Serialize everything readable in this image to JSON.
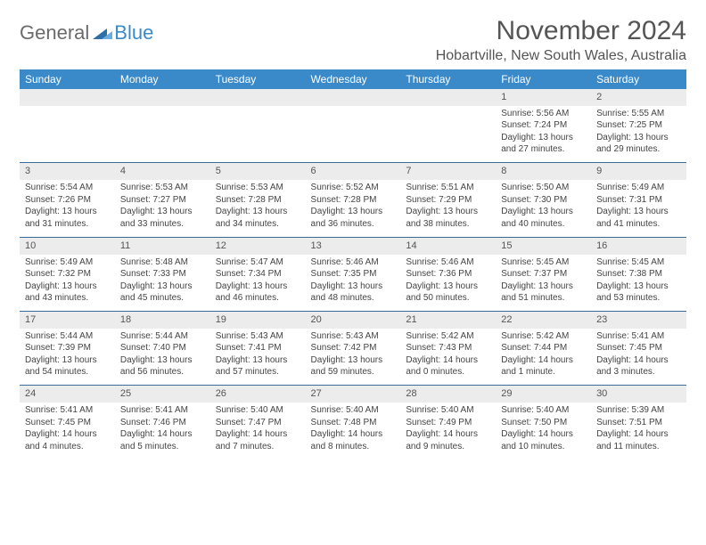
{
  "brand": {
    "general": "General",
    "blue": "Blue"
  },
  "title": "November 2024",
  "location": "Hobartville, New South Wales, Australia",
  "colors": {
    "header_bg": "#3a8ac9",
    "header_text": "#ffffff",
    "daynum_bg": "#ececec",
    "row_border": "#3a6a9a",
    "text": "#444444",
    "title_text": "#555555"
  },
  "col_headers": [
    "Sunday",
    "Monday",
    "Tuesday",
    "Wednesday",
    "Thursday",
    "Friday",
    "Saturday"
  ],
  "weeks": [
    {
      "nums": [
        "",
        "",
        "",
        "",
        "",
        "1",
        "2"
      ],
      "cells": [
        [],
        [],
        [],
        [],
        [],
        [
          "Sunrise: 5:56 AM",
          "Sunset: 7:24 PM",
          "Daylight: 13 hours",
          "and 27 minutes."
        ],
        [
          "Sunrise: 5:55 AM",
          "Sunset: 7:25 PM",
          "Daylight: 13 hours",
          "and 29 minutes."
        ]
      ]
    },
    {
      "nums": [
        "3",
        "4",
        "5",
        "6",
        "7",
        "8",
        "9"
      ],
      "cells": [
        [
          "Sunrise: 5:54 AM",
          "Sunset: 7:26 PM",
          "Daylight: 13 hours",
          "and 31 minutes."
        ],
        [
          "Sunrise: 5:53 AM",
          "Sunset: 7:27 PM",
          "Daylight: 13 hours",
          "and 33 minutes."
        ],
        [
          "Sunrise: 5:53 AM",
          "Sunset: 7:28 PM",
          "Daylight: 13 hours",
          "and 34 minutes."
        ],
        [
          "Sunrise: 5:52 AM",
          "Sunset: 7:28 PM",
          "Daylight: 13 hours",
          "and 36 minutes."
        ],
        [
          "Sunrise: 5:51 AM",
          "Sunset: 7:29 PM",
          "Daylight: 13 hours",
          "and 38 minutes."
        ],
        [
          "Sunrise: 5:50 AM",
          "Sunset: 7:30 PM",
          "Daylight: 13 hours",
          "and 40 minutes."
        ],
        [
          "Sunrise: 5:49 AM",
          "Sunset: 7:31 PM",
          "Daylight: 13 hours",
          "and 41 minutes."
        ]
      ]
    },
    {
      "nums": [
        "10",
        "11",
        "12",
        "13",
        "14",
        "15",
        "16"
      ],
      "cells": [
        [
          "Sunrise: 5:49 AM",
          "Sunset: 7:32 PM",
          "Daylight: 13 hours",
          "and 43 minutes."
        ],
        [
          "Sunrise: 5:48 AM",
          "Sunset: 7:33 PM",
          "Daylight: 13 hours",
          "and 45 minutes."
        ],
        [
          "Sunrise: 5:47 AM",
          "Sunset: 7:34 PM",
          "Daylight: 13 hours",
          "and 46 minutes."
        ],
        [
          "Sunrise: 5:46 AM",
          "Sunset: 7:35 PM",
          "Daylight: 13 hours",
          "and 48 minutes."
        ],
        [
          "Sunrise: 5:46 AM",
          "Sunset: 7:36 PM",
          "Daylight: 13 hours",
          "and 50 minutes."
        ],
        [
          "Sunrise: 5:45 AM",
          "Sunset: 7:37 PM",
          "Daylight: 13 hours",
          "and 51 minutes."
        ],
        [
          "Sunrise: 5:45 AM",
          "Sunset: 7:38 PM",
          "Daylight: 13 hours",
          "and 53 minutes."
        ]
      ]
    },
    {
      "nums": [
        "17",
        "18",
        "19",
        "20",
        "21",
        "22",
        "23"
      ],
      "cells": [
        [
          "Sunrise: 5:44 AM",
          "Sunset: 7:39 PM",
          "Daylight: 13 hours",
          "and 54 minutes."
        ],
        [
          "Sunrise: 5:44 AM",
          "Sunset: 7:40 PM",
          "Daylight: 13 hours",
          "and 56 minutes."
        ],
        [
          "Sunrise: 5:43 AM",
          "Sunset: 7:41 PM",
          "Daylight: 13 hours",
          "and 57 minutes."
        ],
        [
          "Sunrise: 5:43 AM",
          "Sunset: 7:42 PM",
          "Daylight: 13 hours",
          "and 59 minutes."
        ],
        [
          "Sunrise: 5:42 AM",
          "Sunset: 7:43 PM",
          "Daylight: 14 hours",
          "and 0 minutes."
        ],
        [
          "Sunrise: 5:42 AM",
          "Sunset: 7:44 PM",
          "Daylight: 14 hours",
          "and 1 minute."
        ],
        [
          "Sunrise: 5:41 AM",
          "Sunset: 7:45 PM",
          "Daylight: 14 hours",
          "and 3 minutes."
        ]
      ]
    },
    {
      "nums": [
        "24",
        "25",
        "26",
        "27",
        "28",
        "29",
        "30"
      ],
      "cells": [
        [
          "Sunrise: 5:41 AM",
          "Sunset: 7:45 PM",
          "Daylight: 14 hours",
          "and 4 minutes."
        ],
        [
          "Sunrise: 5:41 AM",
          "Sunset: 7:46 PM",
          "Daylight: 14 hours",
          "and 5 minutes."
        ],
        [
          "Sunrise: 5:40 AM",
          "Sunset: 7:47 PM",
          "Daylight: 14 hours",
          "and 7 minutes."
        ],
        [
          "Sunrise: 5:40 AM",
          "Sunset: 7:48 PM",
          "Daylight: 14 hours",
          "and 8 minutes."
        ],
        [
          "Sunrise: 5:40 AM",
          "Sunset: 7:49 PM",
          "Daylight: 14 hours",
          "and 9 minutes."
        ],
        [
          "Sunrise: 5:40 AM",
          "Sunset: 7:50 PM",
          "Daylight: 14 hours",
          "and 10 minutes."
        ],
        [
          "Sunrise: 5:39 AM",
          "Sunset: 7:51 PM",
          "Daylight: 14 hours",
          "and 11 minutes."
        ]
      ]
    }
  ]
}
